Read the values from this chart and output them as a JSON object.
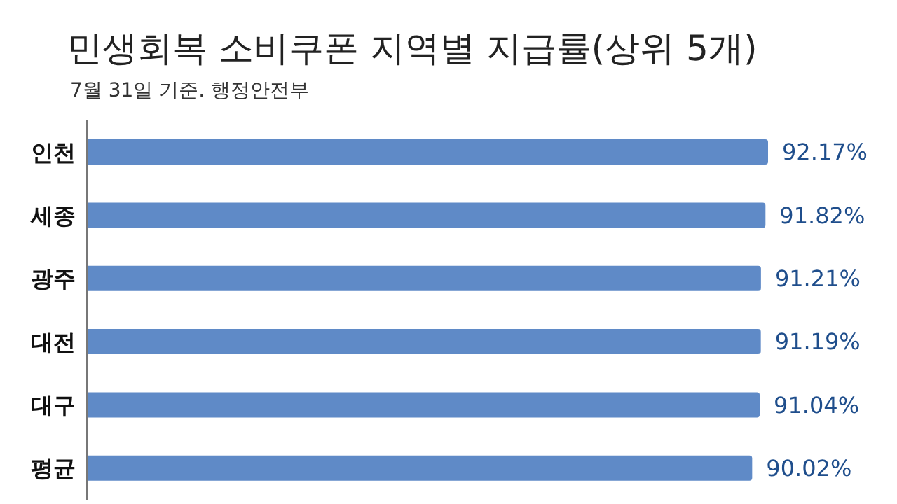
{
  "chart_data": {
    "type": "bar",
    "orientation": "horizontal",
    "title": "민생회복 소비쿠폰 지역별 지급률(상위 5개)",
    "subtitle": "7월 31일 기준. 행정안전부",
    "categories": [
      "인천",
      "세종",
      "광주",
      "대전",
      "대구",
      "평균"
    ],
    "values": [
      92.17,
      91.82,
      91.21,
      91.19,
      91.04,
      90.02
    ],
    "value_labels": [
      "92.17%",
      "91.82%",
      "91.21%",
      "91.19%",
      "91.04%",
      "90.02%"
    ],
    "color": "#5f8ac7",
    "tick_labels": "y",
    "legend": false
  }
}
